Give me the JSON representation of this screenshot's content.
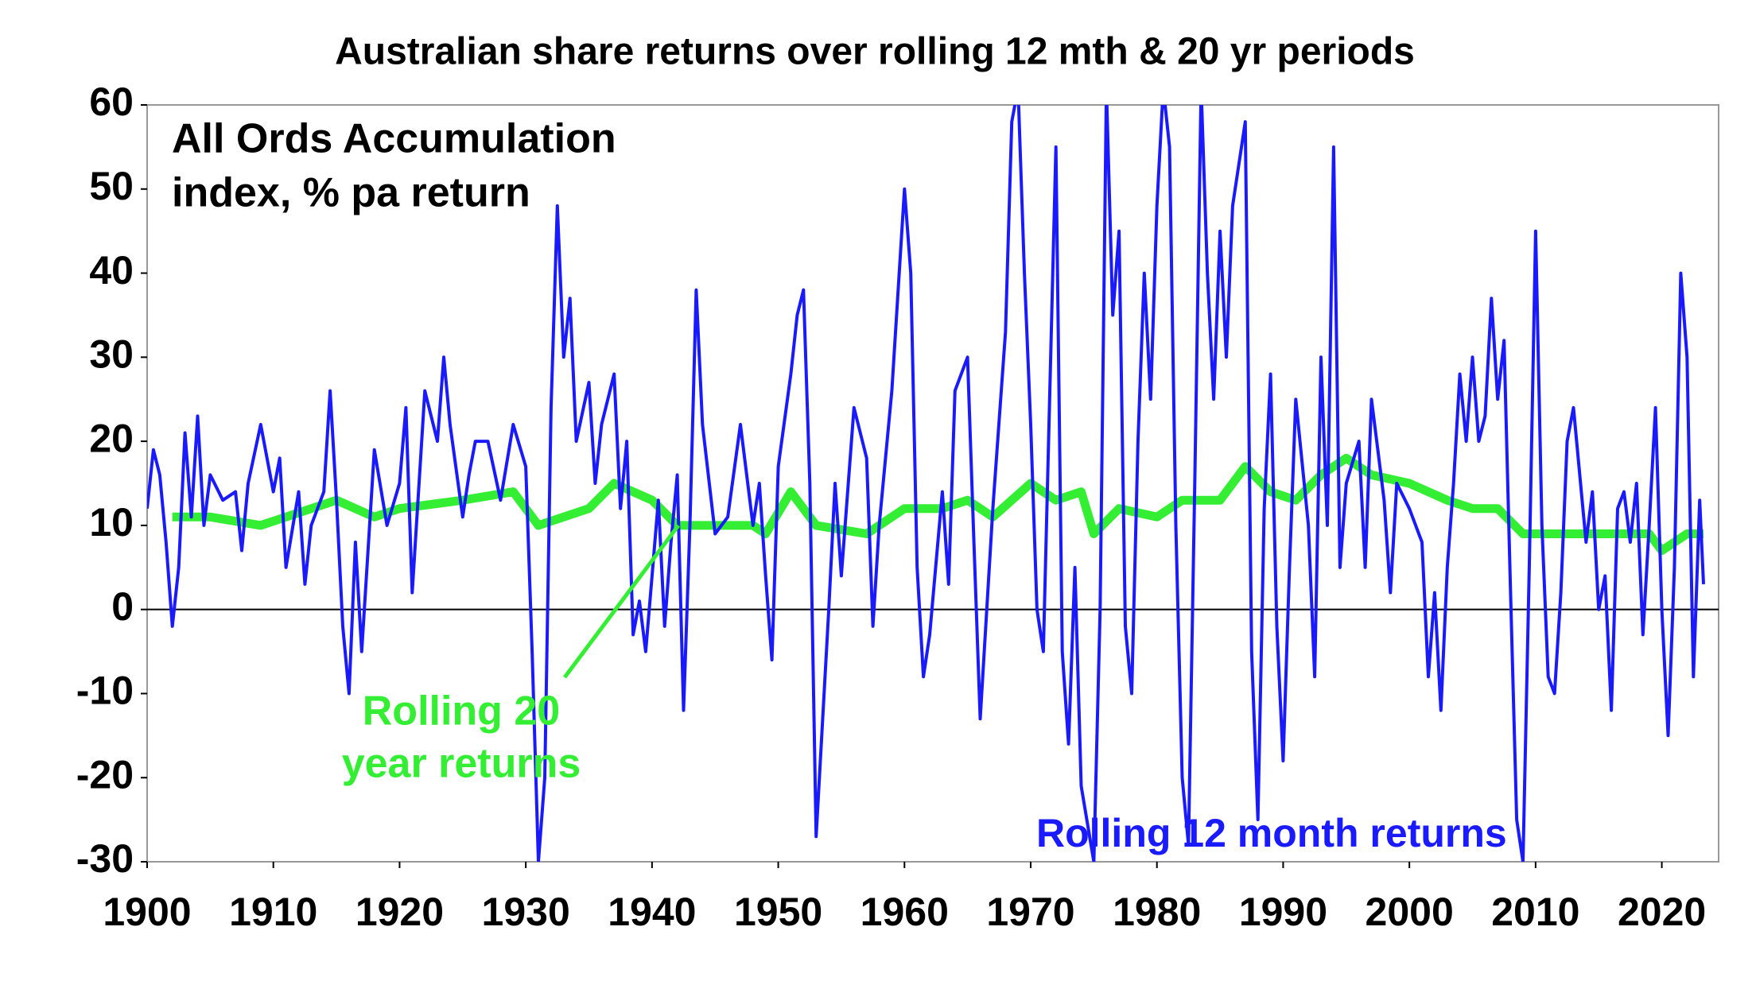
{
  "chart_data": {
    "type": "line",
    "title": "Australian share returns over rolling 12 mth & 20 yr periods",
    "annotation_lines": [
      "All Ords Accumulation",
      "index, % pa return"
    ],
    "xlim": [
      1900,
      2024.5
    ],
    "xticks": [
      1900,
      1910,
      1920,
      1930,
      1940,
      1950,
      1960,
      1970,
      1980,
      1990,
      2000,
      2010,
      2020
    ],
    "ylim": [
      -30,
      60
    ],
    "yticks": [
      -30,
      -20,
      -10,
      0,
      10,
      20,
      30,
      40,
      50,
      60
    ],
    "zero_line": true,
    "series": [
      {
        "name": "Rolling 12 month returns",
        "color": "#1a1aff",
        "x": [
          1900,
          1900.5,
          1901,
          1901.5,
          1902,
          1902.5,
          1903,
          1903.5,
          1904,
          1904.5,
          1905,
          1906,
          1907,
          1907.5,
          1908,
          1909,
          1910,
          1910.5,
          1911,
          1912,
          1912.5,
          1913,
          1914,
          1914.5,
          1915,
          1915.5,
          1916,
          1916.5,
          1917,
          1918,
          1919,
          1920,
          1920.5,
          1921,
          1922,
          1923,
          1923.5,
          1924,
          1925,
          1925.5,
          1926,
          1927,
          1928,
          1929,
          1930,
          1930.5,
          1931,
          1931.5,
          1932,
          1932.5,
          1933,
          1933.5,
          1934,
          1935,
          1935.5,
          1936,
          1937,
          1937.5,
          1938,
          1938.5,
          1939,
          1939.5,
          1940,
          1940.5,
          1941,
          1941.5,
          1942,
          1942.5,
          1943,
          1943.5,
          1944,
          1945,
          1946,
          1947,
          1948,
          1948.5,
          1949,
          1949.5,
          1950,
          1951,
          1951.5,
          1952,
          1952.5,
          1953,
          1954,
          1954.5,
          1955,
          1956,
          1957,
          1957.5,
          1958,
          1959,
          1960,
          1960.5,
          1961,
          1961.5,
          1962,
          1963,
          1963.5,
          1964,
          1965,
          1965.5,
          1966,
          1967,
          1968,
          1968.5,
          1969,
          1969.5,
          1970,
          1970.5,
          1971,
          1972,
          1972.5,
          1973,
          1973.5,
          1974,
          1975,
          1975.5,
          1976,
          1976.5,
          1977,
          1977.5,
          1978,
          1978.5,
          1979,
          1979.5,
          1980,
          1980.5,
          1981,
          1981.5,
          1982,
          1982.5,
          1983,
          1983.5,
          1984,
          1984.5,
          1985,
          1985.5,
          1986,
          1987,
          1987.5,
          1988,
          1988.5,
          1989,
          1989.5,
          1990,
          1990.5,
          1991,
          1992,
          1992.5,
          1993,
          1993.5,
          1994,
          1994.5,
          1995,
          1996,
          1996.5,
          1997,
          1998,
          1998.5,
          1999,
          2000,
          2001,
          2001.5,
          2002,
          2002.5,
          2003,
          2003.5,
          2004,
          2004.5,
          2005,
          2005.5,
          2006,
          2006.5,
          2007,
          2007.5,
          2008,
          2008.5,
          2009,
          2009.5,
          2010,
          2010.5,
          2011,
          2011.5,
          2012,
          2012.5,
          2013,
          2013.5,
          2014,
          2014.5,
          2015,
          2015.5,
          2016,
          2016.5,
          2017,
          2017.5,
          2018,
          2018.5,
          2019,
          2019.5,
          2020,
          2020.5,
          2021,
          2021.5,
          2022,
          2022.5,
          2023,
          2023.3
        ],
        "values": [
          12,
          19,
          16,
          8,
          -2,
          5,
          21,
          11,
          23,
          10,
          16,
          13,
          14,
          7,
          15,
          22,
          14,
          18,
          5,
          14,
          3,
          10,
          14,
          26,
          13,
          -2,
          -10,
          8,
          -5,
          19,
          10,
          15,
          24,
          2,
          26,
          20,
          30,
          22,
          11,
          16,
          20,
          20,
          13,
          22,
          17,
          -5,
          -30,
          -20,
          24,
          48,
          30,
          37,
          20,
          27,
          15,
          22,
          28,
          12,
          20,
          -3,
          1,
          -5,
          4,
          13,
          -2,
          8,
          16,
          -12,
          10,
          38,
          22,
          9,
          11,
          22,
          10,
          15,
          4,
          -6,
          17,
          28,
          35,
          38,
          15,
          -27,
          0,
          15,
          4,
          24,
          18,
          -2,
          10,
          26,
          50,
          40,
          5,
          -8,
          -3,
          14,
          3,
          26,
          30,
          8,
          -13,
          12,
          33,
          58,
          62,
          40,
          22,
          0,
          -5,
          55,
          -5,
          -16,
          5,
          -21,
          -30,
          0,
          62,
          35,
          45,
          -2,
          -10,
          20,
          40,
          25,
          48,
          62,
          55,
          10,
          -20,
          -28,
          15,
          62,
          40,
          25,
          45,
          30,
          48,
          58,
          -5,
          -25,
          12,
          28,
          -2,
          -18,
          5,
          25,
          10,
          -8,
          30,
          10,
          55,
          5,
          15,
          20,
          5,
          25,
          13,
          2,
          15,
          12,
          8,
          -8,
          2,
          -12,
          5,
          15,
          28,
          20,
          30,
          20,
          23,
          37,
          25,
          32,
          3,
          -25,
          -30,
          5,
          45,
          10,
          -8,
          -10,
          2,
          20,
          24,
          16,
          8,
          14,
          0,
          4,
          -12,
          12,
          14,
          8,
          15,
          -3,
          10,
          24,
          0,
          -15,
          5,
          40,
          30,
          -8,
          13,
          3
        ]
      },
      {
        "label_lines": [
          "Rolling 20",
          "year returns"
        ],
        "color": "#33ee33",
        "x": [
          1902,
          1905,
          1909,
          1915,
          1918,
          1920,
          1925,
          1929,
          1931,
          1935,
          1937,
          1940,
          1942,
          1945,
          1948,
          1949,
          1951,
          1953,
          1957,
          1960,
          1963,
          1965,
          1967,
          1970,
          1972,
          1974,
          1975,
          1977,
          1980,
          1982,
          1985,
          1987,
          1989,
          1991,
          1993,
          1995,
          1997,
          2000,
          2003,
          2005,
          2007,
          2009,
          2011,
          2014,
          2017,
          2019,
          2020,
          2022,
          2023.3
        ],
        "values": [
          11,
          11,
          10,
          13,
          11,
          12,
          13,
          14,
          10,
          12,
          15,
          13,
          10,
          10,
          10,
          9,
          14,
          10,
          9,
          12,
          12,
          13,
          11,
          15,
          13,
          14,
          9,
          12,
          11,
          13,
          13,
          17,
          14,
          13,
          16,
          18,
          16,
          15,
          13,
          12,
          12,
          9,
          9,
          9,
          9,
          9,
          7,
          9,
          9
        ]
      }
    ]
  }
}
